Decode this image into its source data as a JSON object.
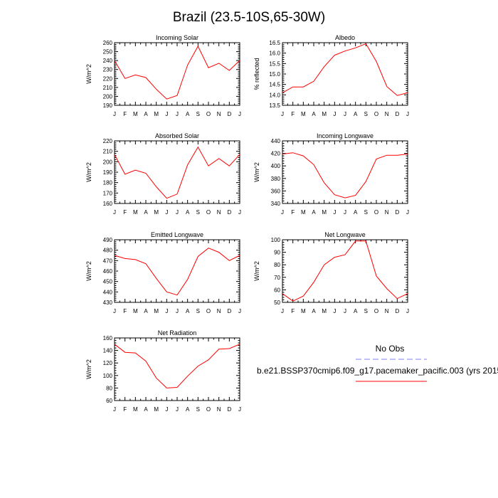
{
  "figure": {
    "title": "Brazil (23.5-10S,65-30W)",
    "legend": {
      "obs_label": "No Obs",
      "model_label": "b.e21.BSSP370cmip6.f09_g17.pacemaker_pacific.003 (yrs 2015",
      "obs_color": "#8080ff",
      "model_color": "#ff0000"
    }
  },
  "chart_data": [
    {
      "type": "line",
      "title": "Incoming Solar",
      "ylabel": "W/m^2",
      "categories": [
        "J",
        "F",
        "M",
        "A",
        "M",
        "J",
        "J",
        "A",
        "S",
        "O",
        "N",
        "D",
        "J"
      ],
      "ylim": [
        190,
        260
      ],
      "yticks": [
        190,
        200,
        210,
        220,
        230,
        240,
        250,
        260
      ],
      "yticklabels": [
        "190",
        "200",
        "210",
        "220",
        "230",
        "240",
        "250",
        "260"
      ],
      "series": [
        {
          "name": "model",
          "color": "#ff0000",
          "values": [
            240,
            220,
            224,
            221,
            208,
            197,
            201,
            235,
            256,
            232,
            237,
            229,
            240
          ]
        }
      ]
    },
    {
      "type": "line",
      "title": "Albedo",
      "ylabel": "% reflected",
      "categories": [
        "J",
        "F",
        "M",
        "A",
        "M",
        "J",
        "J",
        "A",
        "S",
        "O",
        "N",
        "D",
        "J"
      ],
      "ylim": [
        13.5,
        16.5
      ],
      "yticks": [
        13.5,
        14.0,
        14.5,
        15.0,
        15.5,
        16.0,
        16.5
      ],
      "yticklabels": [
        "13.5",
        "14.0",
        "14.5",
        "15.0",
        "15.5",
        "16.0",
        "16.5"
      ],
      "series": [
        {
          "name": "model",
          "color": "#ff0000",
          "values": [
            14.1,
            14.38,
            14.38,
            14.65,
            15.35,
            15.9,
            16.1,
            16.25,
            16.45,
            15.6,
            14.4,
            13.97,
            14.1
          ]
        }
      ]
    },
    {
      "type": "line",
      "title": "Absorbed Solar",
      "ylabel": "W/m^2",
      "categories": [
        "J",
        "F",
        "M",
        "A",
        "M",
        "J",
        "J",
        "A",
        "S",
        "O",
        "N",
        "D",
        "J"
      ],
      "ylim": [
        160,
        220
      ],
      "yticks": [
        160,
        170,
        180,
        190,
        200,
        210,
        220
      ],
      "yticklabels": [
        "160",
        "170",
        "180",
        "190",
        "200",
        "210",
        "220"
      ],
      "series": [
        {
          "name": "model",
          "color": "#ff0000",
          "values": [
            207,
            188,
            192,
            189,
            176,
            165,
            169,
            197,
            214,
            196,
            203,
            196,
            207
          ]
        }
      ]
    },
    {
      "type": "line",
      "title": "Incoming Longwave",
      "ylabel": "W/m^2",
      "categories": [
        "J",
        "F",
        "M",
        "A",
        "M",
        "J",
        "J",
        "A",
        "S",
        "O",
        "N",
        "D",
        "J"
      ],
      "ylim": [
        340,
        440
      ],
      "yticks": [
        340,
        360,
        380,
        400,
        420,
        440
      ],
      "yticklabels": [
        "340",
        "360",
        "380",
        "400",
        "420",
        "440"
      ],
      "series": [
        {
          "name": "model",
          "color": "#ff0000",
          "values": [
            419,
            421,
            416,
            402,
            373,
            354,
            349,
            353,
            375,
            411,
            417,
            417,
            419
          ]
        }
      ]
    },
    {
      "type": "line",
      "title": "Emitted Longwave",
      "ylabel": "W/m^2",
      "categories": [
        "J",
        "F",
        "M",
        "A",
        "M",
        "J",
        "J",
        "A",
        "S",
        "O",
        "N",
        "D",
        "J"
      ],
      "ylim": [
        430,
        490
      ],
      "yticks": [
        430,
        440,
        450,
        460,
        470,
        480,
        490
      ],
      "yticklabels": [
        "430",
        "440",
        "450",
        "460",
        "470",
        "480",
        "490"
      ],
      "series": [
        {
          "name": "model",
          "color": "#ff0000",
          "values": [
            475,
            472,
            471,
            467,
            453,
            440,
            437,
            452,
            474,
            482,
            478,
            470,
            475
          ]
        }
      ]
    },
    {
      "type": "line",
      "title": "Net Longwave",
      "ylabel": "W/m^2",
      "categories": [
        "J",
        "F",
        "M",
        "A",
        "M",
        "J",
        "J",
        "A",
        "S",
        "O",
        "N",
        "D",
        "J"
      ],
      "ylim": [
        50,
        100
      ],
      "yticks": [
        50,
        60,
        70,
        80,
        90,
        100
      ],
      "yticklabels": [
        "50",
        "60",
        "70",
        "80",
        "90",
        "100"
      ],
      "series": [
        {
          "name": "model",
          "color": "#ff0000",
          "values": [
            57,
            51,
            55,
            66,
            80,
            86,
            88,
            99,
            99,
            71,
            61,
            53,
            57
          ]
        }
      ]
    },
    {
      "type": "line",
      "title": "Net Radiation",
      "ylabel": "W/m^2",
      "categories": [
        "J",
        "F",
        "M",
        "A",
        "M",
        "J",
        "J",
        "A",
        "S",
        "O",
        "N",
        "D",
        "J"
      ],
      "ylim": [
        60,
        160
      ],
      "yticks": [
        60,
        80,
        100,
        120,
        140,
        160
      ],
      "yticklabels": [
        "60",
        "80",
        "100",
        "120",
        "140",
        "160"
      ],
      "series": [
        {
          "name": "model",
          "color": "#ff0000",
          "values": [
            150,
            137,
            136,
            123,
            96,
            80,
            81,
            99,
            115,
            125,
            142,
            143,
            150
          ]
        }
      ]
    }
  ]
}
